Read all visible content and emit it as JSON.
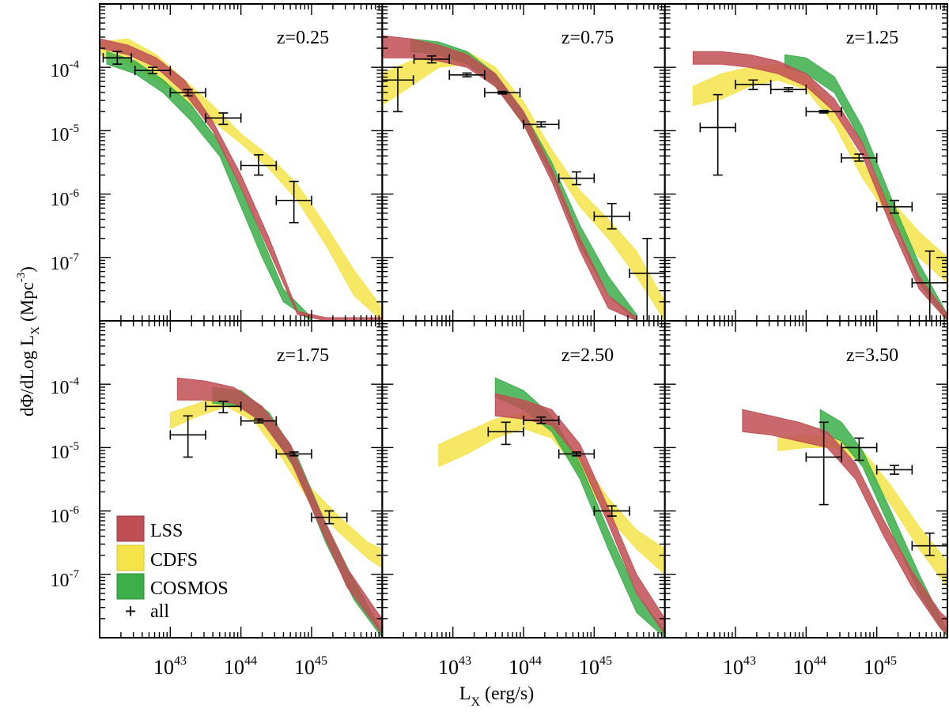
{
  "chart_data": {
    "type": "area",
    "xlabel": "L",
    "xlabel_sub": "X",
    "xlabel_unit": "(erg/s)",
    "ylabel_main": "dΦ/dLog L",
    "ylabel_sub": "X",
    "ylabel_unit": "(Mpc",
    "ylabel_sup": "-3",
    "ylabel_close": ")",
    "x_scale": "log",
    "y_scale": "log",
    "xlim": [
      1e+42,
      1e+46
    ],
    "ylim": [
      1e-08,
      0.001
    ],
    "x_tick_labels": [
      {
        "base": "10",
        "exp": "43",
        "value": 1e+43
      },
      {
        "base": "10",
        "exp": "44",
        "value": 1e+44
      },
      {
        "base": "10",
        "exp": "45",
        "value": 1e+45
      }
    ],
    "y_tick_labels": [
      {
        "base": "10",
        "exp": "-4",
        "value": 0.0001
      },
      {
        "base": "10",
        "exp": "-5",
        "value": 1e-05
      },
      {
        "base": "10",
        "exp": "-6",
        "value": 1e-06
      },
      {
        "base": "10",
        "exp": "-7",
        "value": 1e-07
      }
    ],
    "legend": {
      "position": "bottom-left of lower-left panel",
      "entries": [
        {
          "label": "LSS",
          "color": "#c04f55"
        },
        {
          "label": "CDFS",
          "color": "#f5e34a"
        },
        {
          "label": "COSMOS",
          "color": "#3cae4a"
        },
        {
          "label": "all",
          "marker": "+"
        }
      ]
    },
    "colors": {
      "LSS": "#c04f55",
      "CDFS": "#f5e34a",
      "COSMOS": "#3cae4a"
    },
    "panels": [
      {
        "title": "z=0.25",
        "bands": {
          "CDFS": {
            "x": [
              42.0,
              42.4,
              42.8,
              43.2,
              43.6,
              44.0,
              44.4,
              44.8,
              45.2,
              45.6,
              46.0
            ],
            "lo": [
              -3.8,
              -3.95,
              -4.2,
              -4.5,
              -4.85,
              -5.2,
              -5.6,
              -6.1,
              -6.8,
              -7.6,
              -8.0
            ],
            "hi": [
              -3.6,
              -3.55,
              -3.8,
              -4.2,
              -4.6,
              -5.05,
              -5.4,
              -5.85,
              -6.5,
              -7.2,
              -7.8
            ]
          },
          "COSMOS": {
            "x": [
              42.1,
              42.5,
              42.9,
              43.3,
              43.7,
              44.0,
              44.3,
              44.6,
              45.0
            ],
            "lo": [
              -3.95,
              -4.1,
              -4.4,
              -4.85,
              -5.4,
              -6.2,
              -7.0,
              -7.7,
              -8.0
            ],
            "hi": [
              -3.75,
              -3.9,
              -4.2,
              -4.6,
              -5.2,
              -5.9,
              -6.7,
              -7.5,
              -7.95
            ]
          },
          "LSS": {
            "x": [
              42.0,
              42.4,
              42.8,
              43.2,
              43.6,
              44.0,
              44.4,
              44.8,
              45.2,
              45.6,
              46.0
            ],
            "lo": [
              -3.7,
              -3.8,
              -4.0,
              -4.4,
              -5.0,
              -5.9,
              -6.9,
              -7.9,
              -8.0,
              -8.0,
              -8.0
            ],
            "hi": [
              -3.55,
              -3.65,
              -3.85,
              -4.2,
              -4.85,
              -5.7,
              -6.7,
              -7.85,
              -7.95,
              -7.95,
              -7.95
            ]
          }
        },
        "points": [
          {
            "x": 42.25,
            "xerr": 0.2,
            "y": -3.85,
            "ylo": -3.95,
            "yhi": -3.75
          },
          {
            "x": 42.75,
            "xerr": 0.25,
            "y": -4.05,
            "ylo": -4.1,
            "yhi": -4.0
          },
          {
            "x": 43.25,
            "xerr": 0.25,
            "y": -4.4,
            "ylo": -4.45,
            "yhi": -4.35
          },
          {
            "x": 43.75,
            "xerr": 0.25,
            "y": -4.8,
            "ylo": -4.9,
            "yhi": -4.72
          },
          {
            "x": 44.25,
            "xerr": 0.25,
            "y": -5.55,
            "ylo": -5.7,
            "yhi": -5.38
          },
          {
            "x": 44.75,
            "xerr": 0.25,
            "y": -6.1,
            "ylo": -6.45,
            "yhi": -5.8
          }
        ]
      },
      {
        "title": "z=0.75",
        "bands": {
          "CDFS": {
            "x": [
              42.0,
              42.4,
              42.8,
              43.2,
              43.6,
              44.0,
              44.4,
              44.8,
              45.2,
              45.6,
              46.0
            ],
            "lo": [
              -4.6,
              -4.3,
              -4.0,
              -3.95,
              -4.2,
              -4.7,
              -5.5,
              -6.2,
              -6.7,
              -7.3,
              -8.0
            ],
            "hi": [
              -4.1,
              -3.9,
              -3.8,
              -3.75,
              -4.0,
              -4.55,
              -5.3,
              -5.95,
              -6.4,
              -6.9,
              -7.7
            ]
          },
          "COSMOS": {
            "x": [
              42.4,
              42.8,
              43.2,
              43.6,
              44.0,
              44.4,
              44.8,
              45.2,
              45.6
            ],
            "lo": [
              -3.75,
              -3.8,
              -3.95,
              -4.3,
              -4.9,
              -5.7,
              -6.8,
              -7.6,
              -8.0
            ],
            "hi": [
              -3.55,
              -3.6,
              -3.75,
              -4.1,
              -4.7,
              -5.5,
              -6.5,
              -7.3,
              -7.9
            ]
          },
          "LSS": {
            "x": [
              42.0,
              42.4,
              42.8,
              43.2,
              43.6,
              44.0,
              44.4,
              44.8,
              45.2,
              45.6
            ],
            "lo": [
              -3.85,
              -3.85,
              -3.9,
              -4.0,
              -4.3,
              -4.9,
              -5.8,
              -6.9,
              -7.8,
              -8.0
            ],
            "hi": [
              -3.5,
              -3.55,
              -3.65,
              -3.8,
              -4.1,
              -4.7,
              -5.6,
              -6.7,
              -7.6,
              -7.95
            ]
          }
        },
        "points": [
          {
            "x": 42.22,
            "xerr": 0.22,
            "y": -4.2,
            "ylo": -4.7,
            "yhi": -4.0
          },
          {
            "x": 42.7,
            "xerr": 0.25,
            "y": -3.87,
            "ylo": -3.93,
            "yhi": -3.82
          },
          {
            "x": 43.2,
            "xerr": 0.25,
            "y": -4.12,
            "ylo": -4.15,
            "yhi": -4.09
          },
          {
            "x": 43.7,
            "xerr": 0.25,
            "y": -4.4,
            "ylo": -4.42,
            "yhi": -4.38
          },
          {
            "x": 44.25,
            "xerr": 0.25,
            "y": -4.9,
            "ylo": -4.94,
            "yhi": -4.86
          },
          {
            "x": 44.75,
            "xerr": 0.25,
            "y": -5.75,
            "ylo": -5.85,
            "yhi": -5.65
          },
          {
            "x": 45.25,
            "xerr": 0.25,
            "y": -6.35,
            "ylo": -6.55,
            "yhi": -6.15
          },
          {
            "x": 45.75,
            "xerr": 0.25,
            "y": -7.25,
            "ylo": -8.0,
            "yhi": -6.7
          }
        ]
      },
      {
        "title": "z=1.25",
        "bands": {
          "CDFS": {
            "x": [
              42.4,
              42.8,
              43.2,
              43.6,
              44.0,
              44.4,
              44.8,
              45.2,
              45.6,
              46.0
            ],
            "lo": [
              -4.6,
              -4.5,
              -4.3,
              -4.2,
              -4.35,
              -4.9,
              -5.75,
              -6.4,
              -7.0,
              -7.4
            ],
            "hi": [
              -4.3,
              -4.1,
              -4.0,
              -3.95,
              -4.15,
              -4.7,
              -5.5,
              -6.1,
              -6.6,
              -7.0
            ]
          },
          "COSMOS": {
            "x": [
              43.7,
              44.0,
              44.4,
              44.8,
              45.2,
              45.6,
              46.0
            ],
            "lo": [
              -4.0,
              -4.1,
              -4.4,
              -5.2,
              -6.3,
              -7.4,
              -8.0
            ],
            "hi": [
              -3.8,
              -3.85,
              -4.15,
              -4.95,
              -6.05,
              -7.1,
              -7.9
            ]
          },
          "LSS": {
            "x": [
              42.4,
              42.8,
              43.2,
              43.6,
              44.0,
              44.4,
              44.8,
              45.2,
              45.6,
              46.0
            ],
            "lo": [
              -3.95,
              -3.95,
              -4.0,
              -4.1,
              -4.3,
              -4.7,
              -5.4,
              -6.5,
              -7.5,
              -8.0
            ],
            "hi": [
              -3.75,
              -3.75,
              -3.8,
              -3.9,
              -4.1,
              -4.5,
              -5.2,
              -6.3,
              -7.3,
              -7.9
            ]
          }
        },
        "points": [
          {
            "x": 42.75,
            "xerr": 0.25,
            "y": -4.95,
            "ylo": -5.7,
            "yhi": -4.43
          },
          {
            "x": 43.25,
            "xerr": 0.25,
            "y": -4.27,
            "ylo": -4.35,
            "yhi": -4.2
          },
          {
            "x": 43.75,
            "xerr": 0.25,
            "y": -4.35,
            "ylo": -4.38,
            "yhi": -4.32
          },
          {
            "x": 44.25,
            "xerr": 0.25,
            "y": -4.7,
            "ylo": -4.72,
            "yhi": -4.68
          },
          {
            "x": 44.75,
            "xerr": 0.25,
            "y": -5.43,
            "ylo": -5.48,
            "yhi": -5.37
          },
          {
            "x": 45.25,
            "xerr": 0.25,
            "y": -6.2,
            "ylo": -6.3,
            "yhi": -6.1
          },
          {
            "x": 45.75,
            "xerr": 0.25,
            "y": -7.4,
            "ylo": -8.0,
            "yhi": -6.9
          }
        ]
      },
      {
        "title": "z=1.75",
        "bands": {
          "CDFS": {
            "x": [
              43.0,
              43.4,
              43.8,
              44.2,
              44.6,
              45.0,
              45.4,
              45.8,
              46.0
            ],
            "lo": [
              -4.7,
              -4.5,
              -4.35,
              -4.6,
              -5.2,
              -5.9,
              -6.35,
              -6.75,
              -6.9
            ],
            "hi": [
              -4.45,
              -4.3,
              -4.15,
              -4.4,
              -5.0,
              -5.65,
              -6.1,
              -6.5,
              -6.6
            ]
          },
          "COSMOS": {
            "x": [
              43.6,
              44.0,
              44.4,
              44.8,
              45.2,
              45.6,
              46.0
            ],
            "lo": [
              -4.3,
              -4.35,
              -4.7,
              -5.4,
              -6.5,
              -7.4,
              -8.0
            ],
            "hi": [
              -4.05,
              -4.1,
              -4.45,
              -5.15,
              -6.2,
              -7.1,
              -7.9
            ]
          },
          "LSS": {
            "x": [
              43.1,
              43.5,
              43.9,
              44.3,
              44.7,
              45.1,
              45.5,
              45.9,
              46.0
            ],
            "lo": [
              -4.25,
              -4.25,
              -4.3,
              -4.6,
              -5.2,
              -6.2,
              -7.2,
              -7.8,
              -7.95
            ],
            "hi": [
              -3.9,
              -3.95,
              -4.05,
              -4.35,
              -4.95,
              -5.95,
              -6.9,
              -7.55,
              -7.7
            ]
          }
        },
        "points": [
          {
            "x": 43.25,
            "xerr": 0.25,
            "y": -4.8,
            "ylo": -5.15,
            "yhi": -4.5
          },
          {
            "x": 43.75,
            "xerr": 0.25,
            "y": -4.35,
            "ylo": -4.45,
            "yhi": -4.27
          },
          {
            "x": 44.25,
            "xerr": 0.25,
            "y": -4.58,
            "ylo": -4.61,
            "yhi": -4.55
          },
          {
            "x": 44.75,
            "xerr": 0.25,
            "y": -5.1,
            "ylo": -5.13,
            "yhi": -5.07
          },
          {
            "x": 45.25,
            "xerr": 0.25,
            "y": -6.1,
            "ylo": -6.2,
            "yhi": -6.0
          }
        ]
      },
      {
        "title": "z=2.50",
        "bands": {
          "CDFS": {
            "x": [
              42.8,
              43.2,
              43.6,
              44.0,
              44.4,
              44.8,
              45.2,
              45.6,
              46.0
            ],
            "lo": [
              -5.3,
              -5.1,
              -4.85,
              -4.7,
              -4.85,
              -5.4,
              -6.1,
              -6.6,
              -7.0
            ],
            "hi": [
              -4.95,
              -4.75,
              -4.55,
              -4.45,
              -4.6,
              -5.15,
              -5.8,
              -6.3,
              -6.6
            ]
          },
          "COSMOS": {
            "x": [
              43.6,
              44.0,
              44.4,
              44.8,
              45.2,
              45.6,
              46.0
            ],
            "lo": [
              -4.2,
              -4.4,
              -4.75,
              -5.5,
              -6.6,
              -7.6,
              -8.0
            ],
            "hi": [
              -3.9,
              -4.1,
              -4.5,
              -5.25,
              -6.3,
              -7.3,
              -7.9
            ]
          },
          "LSS": {
            "x": [
              43.6,
              44.0,
              44.4,
              44.8,
              45.2,
              45.6,
              46.0
            ],
            "lo": [
              -4.5,
              -4.55,
              -4.65,
              -5.2,
              -6.2,
              -7.3,
              -7.95
            ],
            "hi": [
              -4.15,
              -4.25,
              -4.4,
              -4.95,
              -5.95,
              -7.0,
              -7.7
            ]
          }
        },
        "points": [
          {
            "x": 43.75,
            "xerr": 0.25,
            "y": -4.75,
            "ylo": -4.95,
            "yhi": -4.6
          },
          {
            "x": 44.25,
            "xerr": 0.25,
            "y": -4.57,
            "ylo": -4.62,
            "yhi": -4.52
          },
          {
            "x": 44.75,
            "xerr": 0.25,
            "y": -5.1,
            "ylo": -5.13,
            "yhi": -5.07
          },
          {
            "x": 45.25,
            "xerr": 0.25,
            "y": -6.0,
            "ylo": -6.08,
            "yhi": -5.92
          }
        ]
      },
      {
        "title": "z=3.50",
        "bands": {
          "CDFS": {
            "x": [
              43.6,
              44.0,
              44.4,
              44.8,
              45.2,
              45.6,
              46.0
            ],
            "lo": [
              -5.05,
              -5.0,
              -5.0,
              -5.25,
              -5.9,
              -6.6,
              -7.2
            ],
            "hi": [
              -4.85,
              -4.8,
              -4.85,
              -5.05,
              -5.6,
              -6.25,
              -6.8
            ]
          },
          "COSMOS": {
            "x": [
              44.2,
              44.5,
              44.8,
              45.2,
              45.6,
              46.0
            ],
            "lo": [
              -4.75,
              -4.9,
              -5.3,
              -6.3,
              -7.3,
              -8.0
            ],
            "hi": [
              -4.4,
              -4.6,
              -5.05,
              -6.0,
              -7.0,
              -7.9
            ]
          },
          "LSS": {
            "x": [
              43.1,
              43.5,
              43.9,
              44.3,
              44.7,
              45.1,
              45.5,
              45.9,
              46.0
            ],
            "lo": [
              -4.75,
              -4.8,
              -4.9,
              -5.0,
              -5.5,
              -6.4,
              -7.2,
              -7.85,
              -7.95
            ],
            "hi": [
              -4.4,
              -4.5,
              -4.6,
              -4.75,
              -5.25,
              -6.15,
              -6.95,
              -7.6,
              -7.7
            ]
          }
        },
        "points": [
          {
            "x": 44.25,
            "xerr": 0.25,
            "y": -5.15,
            "ylo": -5.9,
            "yhi": -4.6
          },
          {
            "x": 44.75,
            "xerr": 0.25,
            "y": -5.0,
            "ylo": -5.2,
            "yhi": -4.85
          },
          {
            "x": 45.25,
            "xerr": 0.25,
            "y": -5.35,
            "ylo": -5.42,
            "yhi": -5.28
          },
          {
            "x": 45.75,
            "xerr": 0.25,
            "y": -6.55,
            "ylo": -6.7,
            "yhi": -6.35
          }
        ]
      }
    ]
  }
}
